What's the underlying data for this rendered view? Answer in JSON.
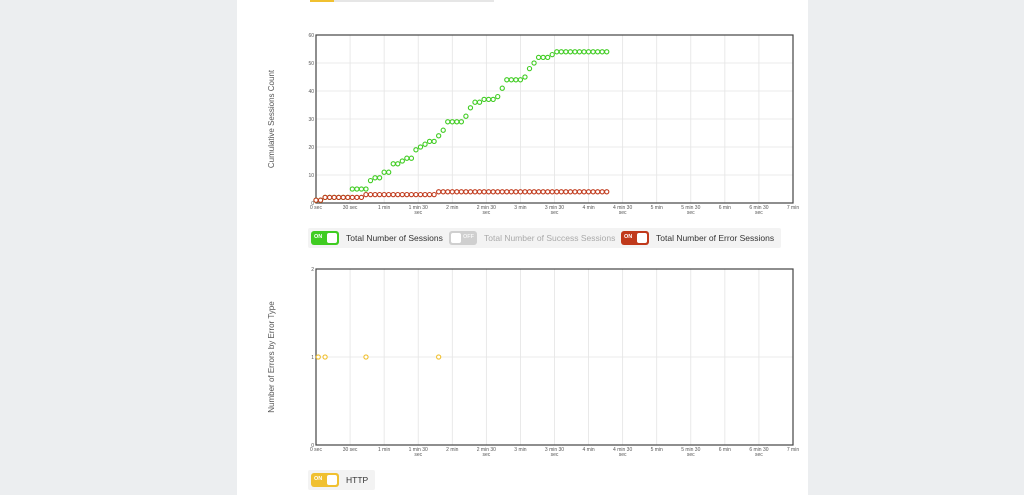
{
  "colors": {
    "total": "#3fcc21",
    "success": "#cfcfcf",
    "error": "#c0391b",
    "http": "#f0c030"
  },
  "legend1": [
    {
      "label": "Total Number of Sessions",
      "state": "ON",
      "color_key": "total"
    },
    {
      "label": "Total Number of Success Sessions",
      "state": "OFF",
      "color_key": "success"
    },
    {
      "label": "Total Number of Error Sessions",
      "state": "ON",
      "color_key": "error"
    }
  ],
  "legend2": [
    {
      "label": "HTTP",
      "state": "ON",
      "color_key": "http"
    }
  ],
  "chart_data": [
    {
      "type": "scatter",
      "ylabel": "Cumulative Sessions Count",
      "xlim": [
        0,
        420
      ],
      "ylim": [
        0,
        60
      ],
      "yticks": [
        0,
        10,
        20,
        30,
        40,
        50,
        60
      ],
      "xticks": [
        {
          "v": 0,
          "l1": "0 sec",
          "l2": ""
        },
        {
          "v": 30,
          "l1": "30 sec",
          "l2": ""
        },
        {
          "v": 60,
          "l1": "1 min",
          "l2": ""
        },
        {
          "v": 90,
          "l1": "1 min 30",
          "l2": "sec"
        },
        {
          "v": 120,
          "l1": "2 min",
          "l2": ""
        },
        {
          "v": 150,
          "l1": "2 min 30",
          "l2": "sec"
        },
        {
          "v": 180,
          "l1": "3 min",
          "l2": ""
        },
        {
          "v": 210,
          "l1": "3 min 30",
          "l2": "sec"
        },
        {
          "v": 240,
          "l1": "4 min",
          "l2": ""
        },
        {
          "v": 270,
          "l1": "4 min 30",
          "l2": "sec"
        },
        {
          "v": 300,
          "l1": "5 min",
          "l2": ""
        },
        {
          "v": 330,
          "l1": "5 min 30",
          "l2": "sec"
        },
        {
          "v": 360,
          "l1": "6 min",
          "l2": ""
        },
        {
          "v": 390,
          "l1": "6 min 30",
          "l2": "sec"
        },
        {
          "v": 420,
          "l1": "7 min",
          "l2": ""
        }
      ],
      "series": [
        {
          "name": "Total Number of Sessions",
          "color_key": "total",
          "points": [
            [
              0,
              1
            ],
            [
              4,
              1
            ],
            [
              8,
              2
            ],
            [
              12,
              2
            ],
            [
              16,
              2
            ],
            [
              20,
              2
            ],
            [
              24,
              2
            ],
            [
              28,
              2
            ],
            [
              32,
              5
            ],
            [
              36,
              5
            ],
            [
              40,
              5
            ],
            [
              44,
              5
            ],
            [
              48,
              8
            ],
            [
              52,
              9
            ],
            [
              56,
              9
            ],
            [
              60,
              11
            ],
            [
              64,
              11
            ],
            [
              68,
              14
            ],
            [
              72,
              14
            ],
            [
              76,
              15
            ],
            [
              80,
              16
            ],
            [
              84,
              16
            ],
            [
              88,
              19
            ],
            [
              92,
              20
            ],
            [
              96,
              21
            ],
            [
              100,
              22
            ],
            [
              104,
              22
            ],
            [
              108,
              24
            ],
            [
              112,
              26
            ],
            [
              116,
              29
            ],
            [
              120,
              29
            ],
            [
              124,
              29
            ],
            [
              128,
              29
            ],
            [
              132,
              31
            ],
            [
              136,
              34
            ],
            [
              140,
              36
            ],
            [
              144,
              36
            ],
            [
              148,
              37
            ],
            [
              152,
              37
            ],
            [
              156,
              37
            ],
            [
              160,
              38
            ],
            [
              164,
              41
            ],
            [
              168,
              44
            ],
            [
              172,
              44
            ],
            [
              176,
              44
            ],
            [
              180,
              44
            ],
            [
              184,
              45
            ],
            [
              188,
              48
            ],
            [
              192,
              50
            ],
            [
              196,
              52
            ],
            [
              200,
              52
            ],
            [
              204,
              52
            ],
            [
              208,
              53
            ],
            [
              212,
              54
            ],
            [
              216,
              54
            ],
            [
              220,
              54
            ],
            [
              224,
              54
            ],
            [
              228,
              54
            ],
            [
              232,
              54
            ],
            [
              236,
              54
            ],
            [
              240,
              54
            ],
            [
              244,
              54
            ],
            [
              248,
              54
            ],
            [
              252,
              54
            ],
            [
              256,
              54
            ]
          ]
        },
        {
          "name": "Total Number of Error Sessions",
          "color_key": "error",
          "points": [
            [
              0,
              1
            ],
            [
              4,
              1
            ],
            [
              8,
              2
            ],
            [
              12,
              2
            ],
            [
              16,
              2
            ],
            [
              20,
              2
            ],
            [
              24,
              2
            ],
            [
              28,
              2
            ],
            [
              32,
              2
            ],
            [
              36,
              2
            ],
            [
              40,
              2
            ],
            [
              44,
              3
            ],
            [
              48,
              3
            ],
            [
              52,
              3
            ],
            [
              56,
              3
            ],
            [
              60,
              3
            ],
            [
              64,
              3
            ],
            [
              68,
              3
            ],
            [
              72,
              3
            ],
            [
              76,
              3
            ],
            [
              80,
              3
            ],
            [
              84,
              3
            ],
            [
              88,
              3
            ],
            [
              92,
              3
            ],
            [
              96,
              3
            ],
            [
              100,
              3
            ],
            [
              104,
              3
            ],
            [
              108,
              4
            ],
            [
              112,
              4
            ],
            [
              116,
              4
            ],
            [
              120,
              4
            ],
            [
              124,
              4
            ],
            [
              128,
              4
            ],
            [
              132,
              4
            ],
            [
              136,
              4
            ],
            [
              140,
              4
            ],
            [
              144,
              4
            ],
            [
              148,
              4
            ],
            [
              152,
              4
            ],
            [
              156,
              4
            ],
            [
              160,
              4
            ],
            [
              164,
              4
            ],
            [
              168,
              4
            ],
            [
              172,
              4
            ],
            [
              176,
              4
            ],
            [
              180,
              4
            ],
            [
              184,
              4
            ],
            [
              188,
              4
            ],
            [
              192,
              4
            ],
            [
              196,
              4
            ],
            [
              200,
              4
            ],
            [
              204,
              4
            ],
            [
              208,
              4
            ],
            [
              212,
              4
            ],
            [
              216,
              4
            ],
            [
              220,
              4
            ],
            [
              224,
              4
            ],
            [
              228,
              4
            ],
            [
              232,
              4
            ],
            [
              236,
              4
            ],
            [
              240,
              4
            ],
            [
              244,
              4
            ],
            [
              248,
              4
            ],
            [
              252,
              4
            ],
            [
              256,
              4
            ]
          ]
        }
      ]
    },
    {
      "type": "scatter",
      "ylabel": "Number of Errors by Error Type",
      "xlim": [
        0,
        420
      ],
      "ylim": [
        0,
        2
      ],
      "yticks": [
        0,
        1,
        2
      ],
      "xticks": [
        {
          "v": 0,
          "l1": "0 sec",
          "l2": ""
        },
        {
          "v": 30,
          "l1": "30 sec",
          "l2": ""
        },
        {
          "v": 60,
          "l1": "1 min",
          "l2": ""
        },
        {
          "v": 90,
          "l1": "1 min 30",
          "l2": "sec"
        },
        {
          "v": 120,
          "l1": "2 min",
          "l2": ""
        },
        {
          "v": 150,
          "l1": "2 min 30",
          "l2": "sec"
        },
        {
          "v": 180,
          "l1": "3 min",
          "l2": ""
        },
        {
          "v": 210,
          "l1": "3 min 30",
          "l2": "sec"
        },
        {
          "v": 240,
          "l1": "4 min",
          "l2": ""
        },
        {
          "v": 270,
          "l1": "4 min 30",
          "l2": "sec"
        },
        {
          "v": 300,
          "l1": "5 min",
          "l2": ""
        },
        {
          "v": 330,
          "l1": "5 min 30",
          "l2": "sec"
        },
        {
          "v": 360,
          "l1": "6 min",
          "l2": ""
        },
        {
          "v": 390,
          "l1": "6 min 30",
          "l2": "sec"
        },
        {
          "v": 420,
          "l1": "7 min",
          "l2": ""
        }
      ],
      "series": [
        {
          "name": "HTTP",
          "color_key": "http",
          "points": [
            [
              2,
              1
            ],
            [
              8,
              1
            ],
            [
              44,
              1
            ],
            [
              108,
              1
            ]
          ]
        }
      ]
    }
  ]
}
